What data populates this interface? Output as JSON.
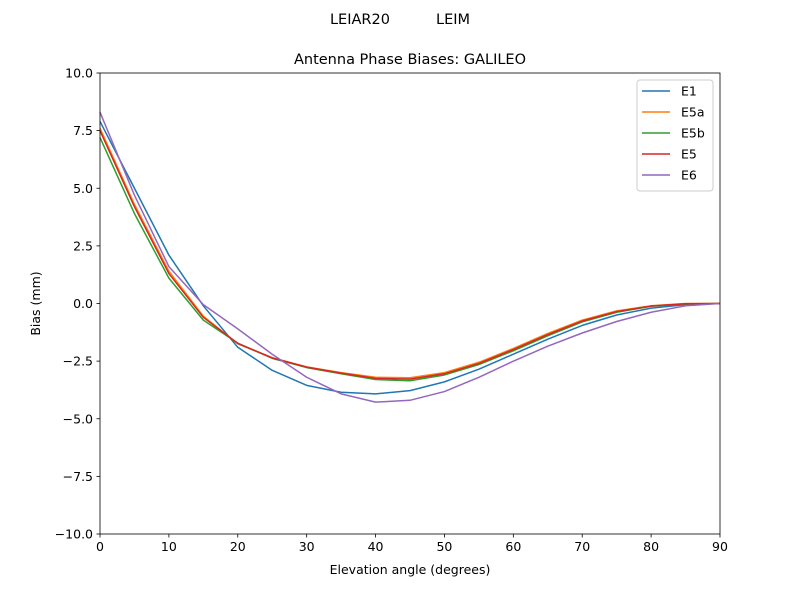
{
  "figure": {
    "suptitle": "LEIAR20          LEIM"
  },
  "chart_data": {
    "type": "line",
    "title": "Antenna Phase Biases: GALILEO",
    "xlabel": "Elevation angle (degrees)",
    "ylabel": "Bias (mm)",
    "xlim": [
      0,
      90
    ],
    "ylim": [
      -10,
      10
    ],
    "x_ticks": [
      0,
      10,
      20,
      30,
      40,
      50,
      60,
      70,
      80,
      90
    ],
    "y_ticks": [
      -10,
      -7.5,
      -5,
      -2.5,
      0,
      2.5,
      5,
      7.5,
      10
    ],
    "x_tick_labels": [
      "0",
      "10",
      "20",
      "30",
      "40",
      "50",
      "60",
      "70",
      "80",
      "90"
    ],
    "y_tick_labels": [
      "−10.0",
      "−7.5",
      "−5.0",
      "−2.5",
      "0.0",
      "2.5",
      "5.0",
      "7.5",
      "10.0"
    ],
    "grid": false,
    "legend_position": "top-right",
    "x": [
      0,
      5,
      10,
      15,
      20,
      25,
      30,
      35,
      40,
      45,
      50,
      55,
      60,
      65,
      70,
      75,
      80,
      85,
      90
    ],
    "series": [
      {
        "name": "E1",
        "color": "#1f77b4",
        "values": [
          7.9,
          5.0,
          2.1,
          -0.1,
          -1.9,
          -2.9,
          -3.55,
          -3.85,
          -3.92,
          -3.78,
          -3.4,
          -2.85,
          -2.2,
          -1.55,
          -0.95,
          -0.5,
          -0.2,
          -0.05,
          0.0
        ]
      },
      {
        "name": "E5a",
        "color": "#ff7f0e",
        "values": [
          7.6,
          4.3,
          1.4,
          -0.55,
          -1.75,
          -2.35,
          -2.75,
          -3.0,
          -3.2,
          -3.22,
          -3.0,
          -2.55,
          -1.95,
          -1.3,
          -0.72,
          -0.32,
          -0.1,
          0.0,
          0.0
        ]
      },
      {
        "name": "E5b",
        "color": "#2ca02c",
        "values": [
          7.2,
          3.9,
          1.1,
          -0.72,
          -1.72,
          -2.38,
          -2.78,
          -3.05,
          -3.3,
          -3.35,
          -3.1,
          -2.65,
          -2.05,
          -1.4,
          -0.8,
          -0.38,
          -0.12,
          -0.02,
          0.0
        ]
      },
      {
        "name": "E5",
        "color": "#d62728",
        "values": [
          7.5,
          4.2,
          1.3,
          -0.6,
          -1.73,
          -2.36,
          -2.76,
          -3.02,
          -3.25,
          -3.28,
          -3.05,
          -2.6,
          -2.0,
          -1.35,
          -0.76,
          -0.35,
          -0.11,
          -0.01,
          0.0
        ]
      },
      {
        "name": "E6",
        "color": "#9467bd",
        "values": [
          8.3,
          4.7,
          1.6,
          -0.05,
          -1.1,
          -2.2,
          -3.2,
          -3.92,
          -4.28,
          -4.2,
          -3.82,
          -3.2,
          -2.5,
          -1.85,
          -1.28,
          -0.78,
          -0.38,
          -0.1,
          0.0
        ]
      }
    ]
  }
}
